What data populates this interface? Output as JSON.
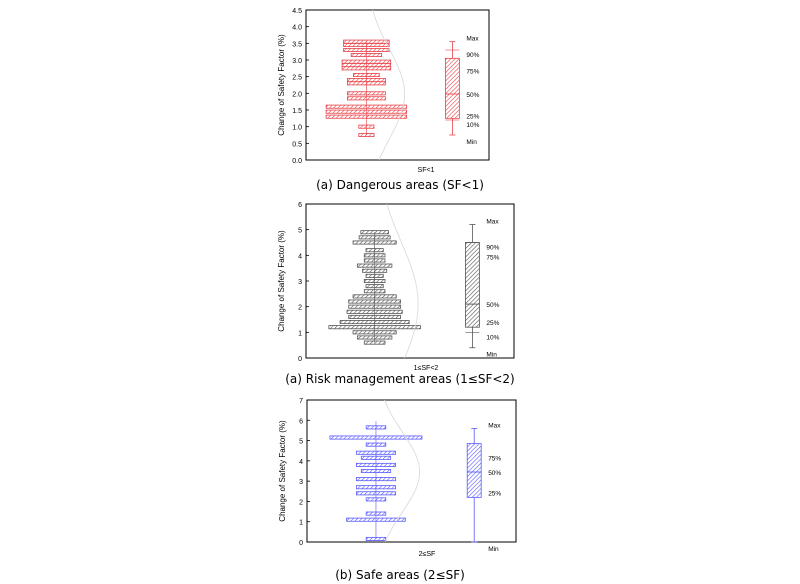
{
  "chart_data": [
    {
      "type": "histogram-boxplot",
      "color": "#e8434a",
      "caption": "(a)  Dangerous areas (SF<1)",
      "ylabel": "Change of Safety Factor (%)",
      "xlabel": "SF<1",
      "ylim": [
        0,
        4.5
      ],
      "yticks": [
        "0.0",
        "0.5",
        "1.0",
        "1.5",
        "2.0",
        "2.5",
        "3.0",
        "3.5",
        "4.0",
        "4.5"
      ],
      "histogram": [
        {
          "y": 0.75,
          "count": 10
        },
        {
          "y": 1.0,
          "count": 10
        },
        {
          "y": 1.3,
          "count": 53
        },
        {
          "y": 1.45,
          "count": 53
        },
        {
          "y": 1.6,
          "count": 53
        },
        {
          "y": 1.85,
          "count": 25
        },
        {
          "y": 2.0,
          "count": 25
        },
        {
          "y": 2.3,
          "count": 25
        },
        {
          "y": 2.4,
          "count": 25
        },
        {
          "y": 2.55,
          "count": 17
        },
        {
          "y": 2.75,
          "count": 32
        },
        {
          "y": 2.85,
          "count": 32
        },
        {
          "y": 2.95,
          "count": 32
        },
        {
          "y": 3.15,
          "count": 20
        },
        {
          "y": 3.3,
          "count": 30
        },
        {
          "y": 3.45,
          "count": 30
        },
        {
          "y": 3.55,
          "count": 30
        }
      ],
      "box": {
        "min": 0.75,
        "p10": 1.2,
        "p25": 1.25,
        "median": 1.98,
        "p75": 3.05,
        "p90": 3.3,
        "max": 3.55
      },
      "box_labels": {
        "max": "Max",
        "p90": "90%",
        "p75": "75%",
        "median": "50%",
        "p25": "25%",
        "p10": "10%",
        "min": "Min"
      }
    },
    {
      "type": "histogram-boxplot",
      "color": "#555555",
      "caption": "(a)  Risk management areas (1≤SF<2)",
      "ylabel": "Change of Safety Factor (%)",
      "xlabel": "1≤SF<2",
      "ylim": [
        0,
        6
      ],
      "yticks": [
        "0",
        "1",
        "2",
        "3",
        "4",
        "5",
        "6"
      ],
      "histogram": [
        {
          "y": 0.6,
          "count": 12
        },
        {
          "y": 0.8,
          "count": 20
        },
        {
          "y": 1.0,
          "count": 25
        },
        {
          "y": 1.2,
          "count": 53
        },
        {
          "y": 1.4,
          "count": 40
        },
        {
          "y": 1.6,
          "count": 30
        },
        {
          "y": 1.8,
          "count": 32
        },
        {
          "y": 2.0,
          "count": 30
        },
        {
          "y": 2.2,
          "count": 30
        },
        {
          "y": 2.4,
          "count": 25
        },
        {
          "y": 2.6,
          "count": 12
        },
        {
          "y": 2.8,
          "count": 10
        },
        {
          "y": 3.0,
          "count": 12
        },
        {
          "y": 3.2,
          "count": 10
        },
        {
          "y": 3.4,
          "count": 14
        },
        {
          "y": 3.6,
          "count": 20
        },
        {
          "y": 3.8,
          "count": 12
        },
        {
          "y": 4.0,
          "count": 12
        },
        {
          "y": 4.2,
          "count": 10
        },
        {
          "y": 4.5,
          "count": 25
        },
        {
          "y": 4.7,
          "count": 18
        },
        {
          "y": 4.9,
          "count": 16
        }
      ],
      "box": {
        "min": 0.4,
        "p10": 1.0,
        "p25": 1.2,
        "median": 2.1,
        "p75": 4.5,
        "p90": 4.5,
        "max": 5.2
      },
      "box_labels": {
        "max": "Max",
        "p90": "90%",
        "p75": "75%",
        "median": "50%",
        "p25": "25%",
        "p10": "10%",
        "min": "Min"
      }
    },
    {
      "type": "histogram-boxplot",
      "color": "#5a5aff",
      "caption": "(b)  Safe areas (2≤SF)",
      "ylabel": "Change of Safety Factor (%)",
      "xlabel": "2≤SF",
      "ylim": [
        0,
        7
      ],
      "yticks": [
        "0",
        "1",
        "2",
        "3",
        "4",
        "5",
        "6",
        "7"
      ],
      "histogram": [
        {
          "y": 0.15,
          "count": 10
        },
        {
          "y": 1.1,
          "count": 30
        },
        {
          "y": 1.4,
          "count": 10
        },
        {
          "y": 2.1,
          "count": 10
        },
        {
          "y": 2.4,
          "count": 20
        },
        {
          "y": 2.7,
          "count": 20
        },
        {
          "y": 3.1,
          "count": 20
        },
        {
          "y": 3.5,
          "count": 15
        },
        {
          "y": 3.8,
          "count": 20
        },
        {
          "y": 4.15,
          "count": 15
        },
        {
          "y": 4.4,
          "count": 20
        },
        {
          "y": 4.8,
          "count": 10
        },
        {
          "y": 5.15,
          "count": 47
        },
        {
          "y": 5.65,
          "count": 10
        }
      ],
      "box": {
        "min": 0.0,
        "p25": 2.2,
        "median": 3.45,
        "p75": 4.85,
        "max": 5.6
      },
      "box_labels": {
        "max": "Max",
        "p75": "75%",
        "median": "50%",
        "p25": "25%",
        "min": "Min"
      }
    }
  ]
}
